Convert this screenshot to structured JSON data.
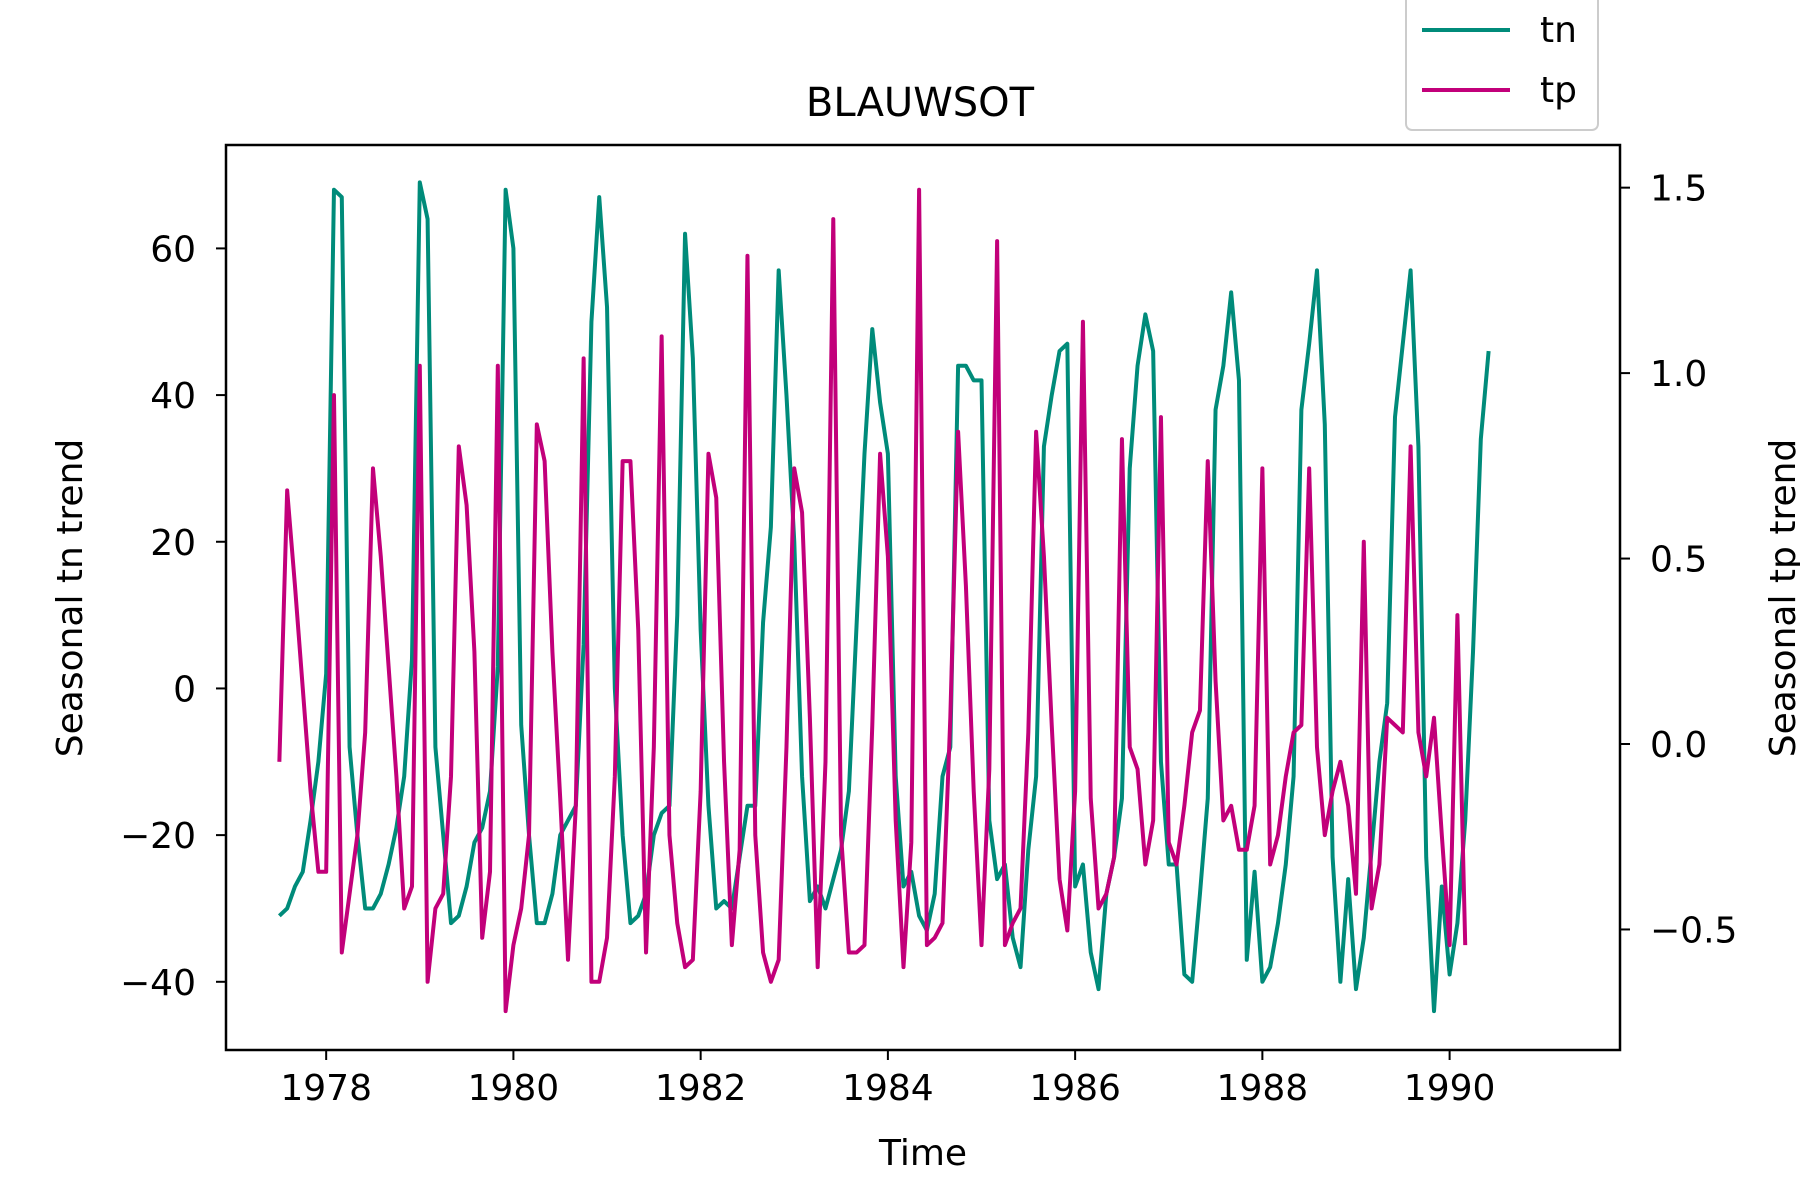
{
  "chart_data": {
    "type": "line",
    "title": "BLAUWSOT",
    "xlabel": "Time",
    "ylabel_left": "Seasonal tn trend",
    "ylabel_right": "Seasonal tp trend",
    "xlim": [
      1976.93,
      1991.82
    ],
    "ylim_left": [
      -49.3,
      74.1
    ],
    "ylim_right": [
      -0.825,
      1.615
    ],
    "x_ticks": [
      1978,
      1980,
      1982,
      1984,
      1986,
      1988,
      1990
    ],
    "y_left_ticks": [
      -40,
      -20,
      0,
      20,
      40,
      60
    ],
    "y_right_ticks": [
      -0.5,
      0.0,
      0.5,
      1.0,
      1.5
    ],
    "grid": false,
    "legend_placement": "top-right, above axes",
    "start_date": "1977-07",
    "step": "monthly",
    "series": [
      {
        "name": "tn",
        "axis": "left",
        "color": "#008B7A",
        "values": [
          -31,
          -30,
          -27,
          -25,
          -18,
          -10,
          2,
          68,
          67,
          -8,
          -20,
          -30,
          -30,
          -28,
          -24,
          -19,
          -12,
          4,
          69,
          64,
          -8,
          -20,
          -32,
          -31,
          -27,
          -21,
          -19,
          -14,
          3,
          68,
          60,
          -5,
          -20,
          -32,
          -32,
          -28,
          -20,
          -18,
          -16,
          6,
          50,
          67,
          52,
          0,
          -20,
          -32,
          -31,
          -28,
          -20,
          -17,
          -16,
          10,
          62,
          45,
          8,
          -16,
          -30,
          -29,
          -30,
          -23,
          -16,
          -16,
          9,
          22,
          57,
          40,
          20,
          -12,
          -29,
          -27,
          -30,
          -26,
          -22,
          -14,
          9,
          32,
          49,
          39,
          32,
          -12,
          -27,
          -25,
          -31,
          -33,
          -28,
          -12,
          -8,
          44,
          44,
          42,
          42,
          -18,
          -26,
          -24,
          -34,
          -38,
          -22,
          -12,
          33,
          40,
          46,
          47,
          -27,
          -24,
          -36,
          -41,
          -28,
          -23,
          -15,
          30,
          44,
          51,
          46,
          -10,
          -24,
          -24,
          -39,
          -40,
          -28,
          -15,
          38,
          44,
          54,
          42,
          -37,
          -25,
          -40,
          -38,
          -32,
          -24,
          -12,
          38,
          47,
          57,
          36,
          -23,
          -40,
          -26,
          -41,
          -34,
          -22,
          -10,
          -2,
          37,
          47,
          57,
          33,
          -23,
          -44,
          -27,
          -39,
          -32,
          -18,
          5,
          34,
          46
        ]
      },
      {
        "name": "tp",
        "axis": "left",
        "color": "#C2007A",
        "values": [
          -10,
          27,
          14,
          0,
          -14,
          -25,
          -25,
          40,
          -36,
          -28,
          -20,
          -6,
          30,
          18,
          3,
          -12,
          -30,
          -27,
          44,
          -40,
          -30,
          -28,
          -12,
          33,
          25,
          5,
          -34,
          -25,
          44,
          -44,
          -35,
          -30,
          -20,
          36,
          31,
          5,
          -15,
          -37,
          -16,
          45,
          -40,
          -40,
          -34,
          -12,
          31,
          31,
          8,
          -36,
          -8,
          48,
          -20,
          -32,
          -38,
          -37,
          -14,
          32,
          26,
          -10,
          -35,
          -22,
          59,
          -20,
          -36,
          -40,
          -37,
          -8,
          30,
          24,
          -4,
          -38,
          -10,
          64,
          -20,
          -36,
          -36,
          -35,
          -5,
          32,
          18,
          -18,
          -38,
          -21,
          68,
          -35,
          -34,
          -32,
          -4,
          35,
          14,
          -14,
          -35,
          -11,
          61,
          -35,
          -32,
          -30,
          -6,
          35,
          18,
          -5,
          -26,
          -33,
          -14,
          50,
          -15,
          -30,
          -28,
          -23,
          34,
          -8,
          -11,
          -24,
          -18,
          37,
          -21,
          -24,
          -16,
          -6,
          -3,
          31,
          1,
          -18,
          -16,
          -22,
          -22,
          -16,
          30,
          -24,
          -20,
          -12,
          -6,
          -5,
          30,
          -8,
          -20,
          -14,
          -10,
          -16,
          -28,
          20,
          -30,
          -24,
          -4,
          -5,
          -6,
          33,
          -6,
          -12,
          -4,
          -20,
          -35,
          10,
          -35
        ]
      }
    ]
  }
}
